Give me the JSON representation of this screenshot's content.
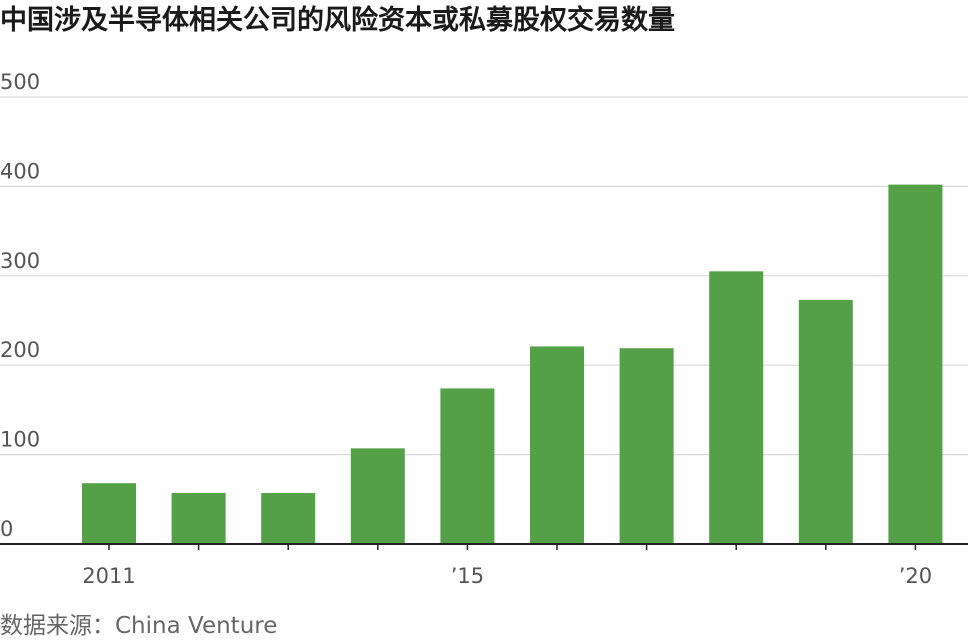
{
  "chart_data": {
    "type": "bar",
    "title": "中国涉及半导体相关公司的风险资本或私募股权交易数量",
    "source": "数据来源：China Venture",
    "xlabel": "",
    "ylabel": "",
    "categories": [
      "2011",
      "2012",
      "2013",
      "2014",
      "2015",
      "2016",
      "2017",
      "2018",
      "2019",
      "2020"
    ],
    "values": [
      68,
      57,
      57,
      107,
      174,
      221,
      219,
      305,
      273,
      402
    ],
    "x_tick_labels": [
      {
        "category": "2011",
        "label": "2011"
      },
      {
        "category": "2015",
        "label": "’15"
      },
      {
        "category": "2020",
        "label": "’20"
      }
    ],
    "ylim": [
      0,
      500
    ],
    "y_ticks": [
      0,
      100,
      200,
      300,
      400,
      500
    ],
    "grid": "horizontal",
    "colors": {
      "bar": "#53a047",
      "grid": "#d9d9d9",
      "axis": "#222222",
      "text": "#555555"
    }
  }
}
